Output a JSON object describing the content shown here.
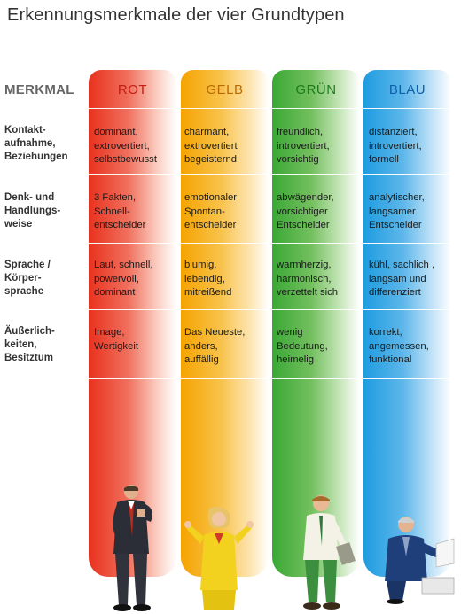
{
  "title": "Erkennungsmerkmale der vier Grundtypen",
  "merkmal_header": "MERKMAL",
  "colors": {
    "rot": "#e8321e",
    "gelb": "#f5a300",
    "gruen": "#3aa835",
    "blau": "#1e9ce0"
  },
  "columns": [
    {
      "key": "rot",
      "label": "ROT"
    },
    {
      "key": "gelb",
      "label": "GELB"
    },
    {
      "key": "gruen",
      "label": "GRÜN"
    },
    {
      "key": "blau",
      "label": "BLAU"
    }
  ],
  "rows": [
    {
      "label": [
        "Kontakt-",
        "aufnahme,",
        "Beziehungen"
      ],
      "cells": [
        [
          "dominant,",
          "extrovertiert,",
          "selbstbewusst"
        ],
        [
          "charmant,",
          "extrovertiert",
          "begeisternd"
        ],
        [
          "freundlich,",
          "introvertiert,",
          "vorsichtig"
        ],
        [
          "distanziert,",
          "introvertiert,",
          "formell"
        ]
      ]
    },
    {
      "label": [
        "Denk- und",
        "Handlungs-",
        "weise"
      ],
      "cells": [
        [
          "3 Fakten,",
          "Schnell-",
          "entscheider"
        ],
        [
          "emotionaler",
          "Spontan-",
          "entscheider"
        ],
        [
          "abwägender,",
          "vorsichtiger",
          "Entscheider"
        ],
        [
          "analytischer,",
          "langsamer",
          "Entscheider"
        ]
      ]
    },
    {
      "label": [
        "Sprache /",
        "Körper-",
        "sprache"
      ],
      "cells": [
        [
          "Laut, schnell,",
          "powervoll,",
          "dominant"
        ],
        [
          "blumig,",
          "lebendig,",
          "mitreißend"
        ],
        [
          "warmherzig,",
          "harmonisch,",
          "verzettelt sich"
        ],
        [
          "kühl, sachlich ,",
          "langsam und",
          "differenziert"
        ]
      ]
    },
    {
      "label": [
        "Äußerlich-",
        "keiten,",
        "Besitztum"
      ],
      "cells": [
        [
          "Image,",
          "Wertigkeit"
        ],
        [
          "Das Neueste,",
          "anders,",
          "auffällig"
        ],
        [
          "wenig",
          "Bedeutung,",
          "heimelig"
        ],
        [
          "korrekt,",
          "angemessen,",
          "funktional"
        ]
      ]
    }
  ]
}
